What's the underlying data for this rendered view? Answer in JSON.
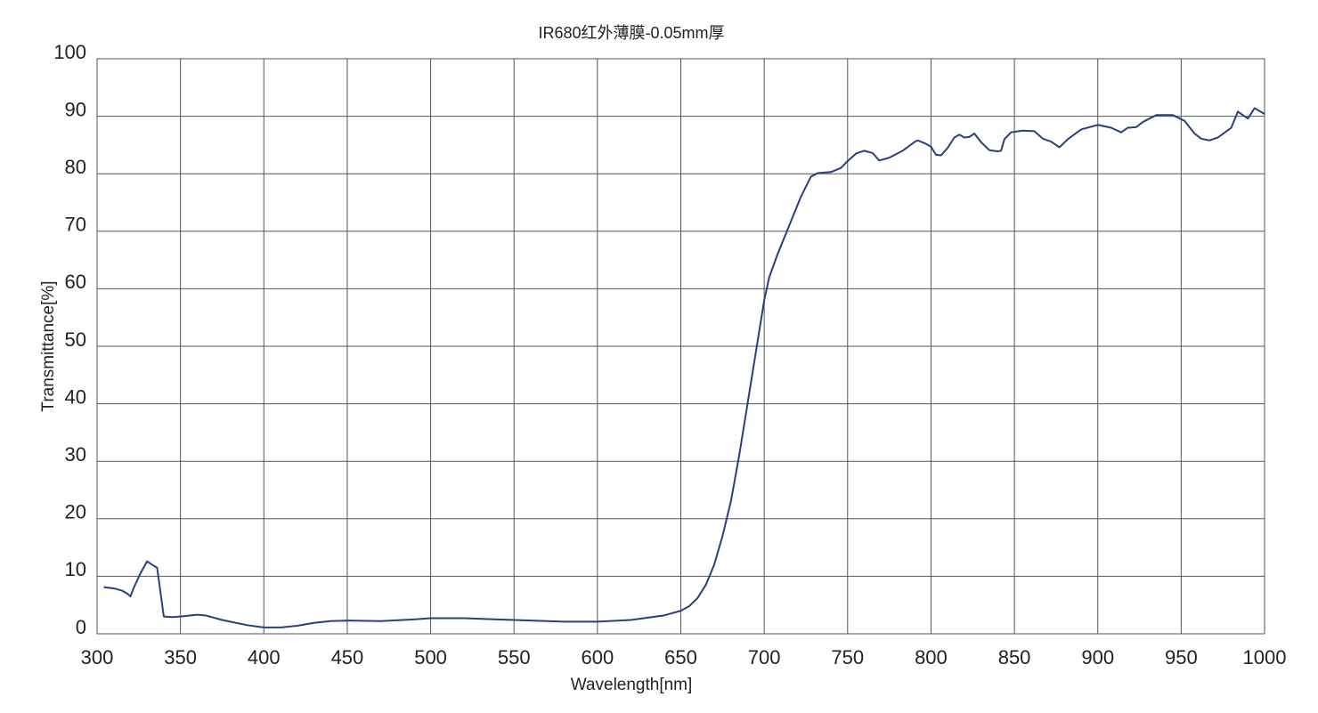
{
  "chart_data": {
    "type": "line",
    "title": "IR680红外薄膜-0.05mm厚",
    "x_label": "Wavelength[nm]",
    "y_label": "Transmittance[%]",
    "xlim": [
      300,
      1000
    ],
    "ylim": [
      0,
      100
    ],
    "xticks": [
      300,
      350,
      400,
      450,
      500,
      550,
      600,
      650,
      700,
      750,
      800,
      850,
      900,
      950,
      1000
    ],
    "yticks": [
      0,
      10,
      20,
      30,
      40,
      50,
      60,
      70,
      80,
      90,
      100
    ],
    "grid": true,
    "x": [
      304,
      310,
      315,
      318,
      320,
      322,
      326,
      330,
      333,
      336,
      340,
      345,
      350,
      360,
      365,
      375,
      390,
      400,
      410,
      420,
      430,
      440,
      450,
      470,
      490,
      500,
      520,
      540,
      560,
      580,
      600,
      620,
      640,
      650,
      655,
      660,
      665,
      670,
      675,
      680,
      685,
      690,
      695,
      700,
      703,
      708,
      715,
      722,
      728,
      732,
      740,
      746,
      750,
      755,
      760,
      765,
      769,
      775,
      783,
      790,
      792,
      797,
      800,
      803,
      806,
      810,
      814,
      817,
      820,
      823,
      826,
      830,
      835,
      840,
      842,
      844,
      848,
      855,
      862,
      867,
      872,
      877,
      882,
      890,
      900,
      908,
      914,
      918,
      923,
      927,
      935,
      945,
      952,
      958,
      962,
      967,
      972,
      980,
      984,
      990,
      994,
      1000
    ],
    "series": [
      {
        "name": "IR680",
        "color": "#2b3f7a",
        "values": [
          8.1,
          7.9,
          7.5,
          7.0,
          6.5,
          8.0,
          10.5,
          12.6,
          12.0,
          11.5,
          3.0,
          2.9,
          3.0,
          3.3,
          3.2,
          2.4,
          1.5,
          1.1,
          1.1,
          1.4,
          1.9,
          2.2,
          2.3,
          2.2,
          2.5,
          2.7,
          2.7,
          2.5,
          2.3,
          2.1,
          2.1,
          2.4,
          3.2,
          4.0,
          4.8,
          6.2,
          8.5,
          12,
          17,
          23,
          31,
          40,
          49,
          58,
          62,
          66,
          71,
          76,
          79.5,
          80.1,
          80.3,
          81,
          82.2,
          83.5,
          84.0,
          83.6,
          82.3,
          82.8,
          84.0,
          85.5,
          85.8,
          85.2,
          84.7,
          83.3,
          83.2,
          84.5,
          86.3,
          86.8,
          86.3,
          86.4,
          87.0,
          85.5,
          84.1,
          83.9,
          84.0,
          86.0,
          87.2,
          87.5,
          87.4,
          86.1,
          85.6,
          84.6,
          86.0,
          87.7,
          88.5,
          88.0,
          87.2,
          88.0,
          88.1,
          89.0,
          90.2,
          90.2,
          89.2,
          87.0,
          86.1,
          85.8,
          86.3,
          88.0,
          90.8,
          89.6,
          91.4,
          90.4
        ]
      }
    ]
  }
}
